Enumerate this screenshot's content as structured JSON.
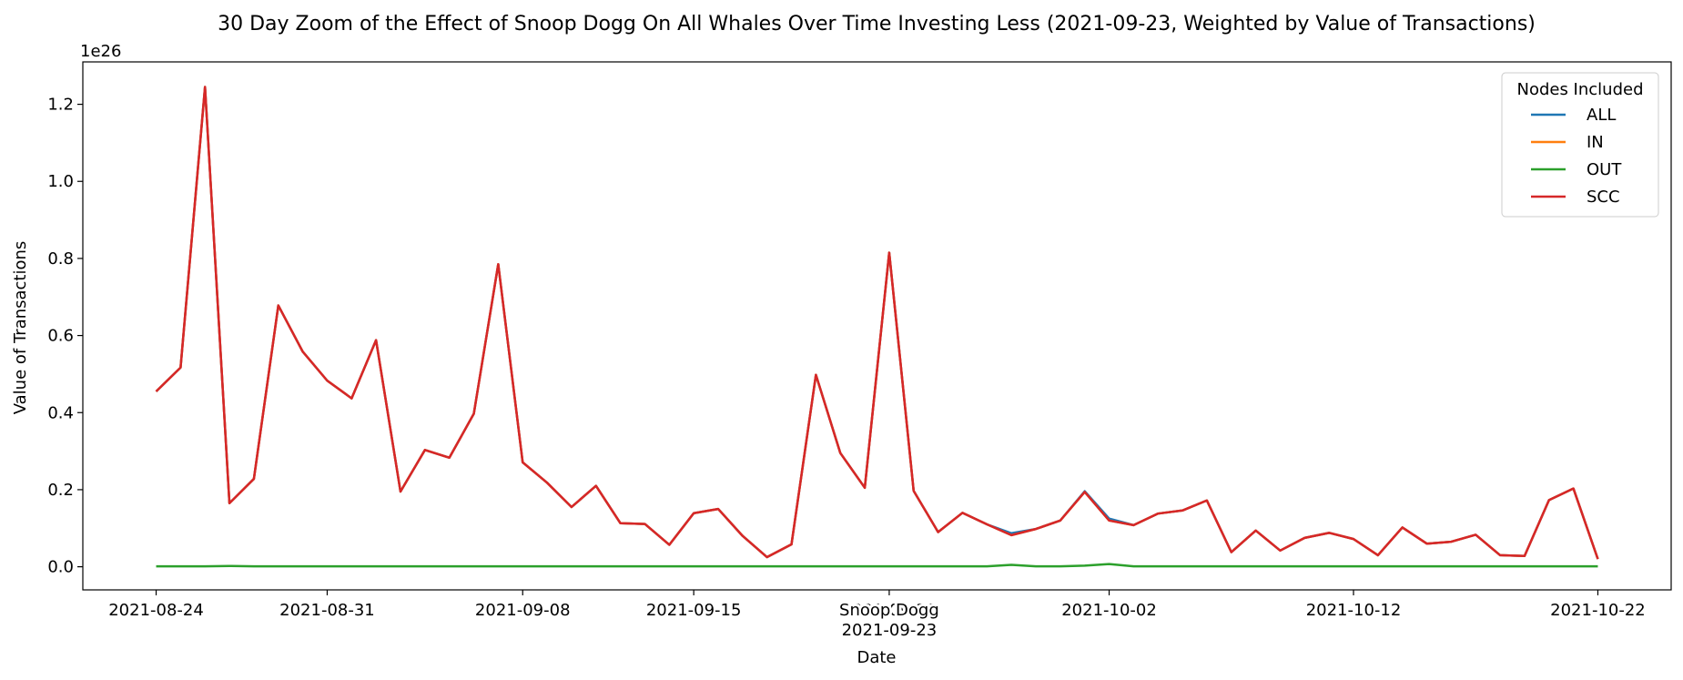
{
  "chart_data": {
    "type": "line",
    "title": "30 Day Zoom of the Effect of Snoop Dogg On All Whales Over Time Investing Less (2021-09-23, Weighted by Value of Transactions)",
    "xlabel": "Date",
    "ylabel": "Value of Transactions",
    "y_offset_text": "1e26",
    "y_scale_factor": 1e+26,
    "ylim": [
      -0.06,
      1.31
    ],
    "y_ticks": [
      0.0,
      0.2,
      0.4,
      0.6,
      0.8,
      1.0,
      1.2
    ],
    "y_tick_labels": [
      "0.0",
      "0.2",
      "0.4",
      "0.6",
      "0.8",
      "1.0",
      "1.2"
    ],
    "xlim": [
      "2021-08-21",
      "2021-10-25"
    ],
    "x_ticks": [
      "2021-08-24",
      "2021-08-31",
      "2021-09-08",
      "2021-09-15",
      "2021-09-23",
      "2021-10-02",
      "2021-10-12",
      "2021-10-22"
    ],
    "x_tick_labels": [
      "2021-08-24",
      "2021-08-31",
      "2021-09-08",
      "2021-09-15",
      "2021-09-23",
      "2021-10-02",
      "2021-10-12",
      "2021-10-22"
    ],
    "event_label": "Snoop Dogg",
    "event_date": "2021-09-23",
    "legend": {
      "title": "Nodes Included",
      "position": "upper-right"
    },
    "x": [
      "2021-08-24",
      "2021-08-25",
      "2021-08-26",
      "2021-08-27",
      "2021-08-28",
      "2021-08-29",
      "2021-08-30",
      "2021-08-31",
      "2021-09-01",
      "2021-09-02",
      "2021-09-03",
      "2021-09-04",
      "2021-09-05",
      "2021-09-06",
      "2021-09-07",
      "2021-09-08",
      "2021-09-09",
      "2021-09-10",
      "2021-09-11",
      "2021-09-12",
      "2021-09-13",
      "2021-09-14",
      "2021-09-15",
      "2021-09-16",
      "2021-09-17",
      "2021-09-18",
      "2021-09-19",
      "2021-09-20",
      "2021-09-21",
      "2021-09-22",
      "2021-09-23",
      "2021-09-24",
      "2021-09-25",
      "2021-09-26",
      "2021-09-27",
      "2021-09-28",
      "2021-09-29",
      "2021-09-30",
      "2021-10-01",
      "2021-10-02",
      "2021-10-03",
      "2021-10-04",
      "2021-10-05",
      "2021-10-06",
      "2021-10-07",
      "2021-10-08",
      "2021-10-09",
      "2021-10-10",
      "2021-10-11",
      "2021-10-12",
      "2021-10-13",
      "2021-10-14",
      "2021-10-15",
      "2021-10-16",
      "2021-10-17",
      "2021-10-18",
      "2021-10-19",
      "2021-10-20",
      "2021-10-21",
      "2021-10-22"
    ],
    "series": [
      {
        "name": "ALL",
        "color": "#1f77b4",
        "values": [
          0.455,
          0.517,
          1.245,
          0.165,
          0.228,
          0.678,
          0.558,
          0.483,
          0.437,
          0.588,
          0.195,
          0.303,
          0.283,
          0.397,
          0.785,
          0.271,
          0.218,
          0.155,
          0.21,
          0.113,
          0.111,
          0.057,
          0.139,
          0.15,
          0.08,
          0.025,
          0.058,
          0.498,
          0.295,
          0.205,
          0.815,
          0.197,
          0.09,
          0.14,
          0.11,
          0.087,
          0.098,
          0.12,
          0.196,
          0.125,
          0.108,
          0.138,
          0.146,
          0.172,
          0.038,
          0.094,
          0.042,
          0.075,
          0.088,
          0.072,
          0.03,
          0.102,
          0.06,
          0.065,
          0.083,
          0.03,
          0.028,
          0.173,
          0.203,
          0.02
        ]
      },
      {
        "name": "IN",
        "color": "#ff7f0e",
        "values": [
          0.455,
          0.517,
          1.245,
          0.165,
          0.228,
          0.678,
          0.558,
          0.483,
          0.437,
          0.588,
          0.195,
          0.303,
          0.283,
          0.397,
          0.785,
          0.271,
          0.218,
          0.155,
          0.21,
          0.113,
          0.111,
          0.057,
          0.139,
          0.15,
          0.08,
          0.025,
          0.058,
          0.498,
          0.295,
          0.205,
          0.815,
          0.197,
          0.09,
          0.14,
          0.11,
          0.082,
          0.098,
          0.12,
          0.194,
          0.12,
          0.108,
          0.138,
          0.146,
          0.172,
          0.038,
          0.094,
          0.042,
          0.075,
          0.088,
          0.072,
          0.03,
          0.102,
          0.06,
          0.065,
          0.083,
          0.03,
          0.028,
          0.173,
          0.203,
          0.02
        ]
      },
      {
        "name": "OUT",
        "color": "#2ca02c",
        "values": [
          0.001,
          0.001,
          0.001,
          0.002,
          0.001,
          0.001,
          0.001,
          0.001,
          0.001,
          0.001,
          0.001,
          0.001,
          0.001,
          0.001,
          0.001,
          0.001,
          0.001,
          0.001,
          0.001,
          0.001,
          0.001,
          0.001,
          0.001,
          0.001,
          0.001,
          0.001,
          0.001,
          0.001,
          0.001,
          0.001,
          0.001,
          0.001,
          0.001,
          0.001,
          0.001,
          0.005,
          0.001,
          0.001,
          0.003,
          0.007,
          0.001,
          0.001,
          0.001,
          0.001,
          0.001,
          0.001,
          0.001,
          0.001,
          0.001,
          0.001,
          0.001,
          0.001,
          0.001,
          0.001,
          0.001,
          0.001,
          0.001,
          0.001,
          0.001,
          0.001
        ]
      },
      {
        "name": "SCC",
        "color": "#d62728",
        "values": [
          0.455,
          0.517,
          1.245,
          0.165,
          0.228,
          0.678,
          0.558,
          0.483,
          0.437,
          0.588,
          0.195,
          0.303,
          0.283,
          0.397,
          0.785,
          0.271,
          0.218,
          0.155,
          0.21,
          0.113,
          0.111,
          0.057,
          0.139,
          0.15,
          0.08,
          0.025,
          0.058,
          0.498,
          0.295,
          0.205,
          0.815,
          0.197,
          0.09,
          0.14,
          0.11,
          0.082,
          0.098,
          0.12,
          0.194,
          0.12,
          0.108,
          0.138,
          0.146,
          0.172,
          0.038,
          0.094,
          0.042,
          0.075,
          0.088,
          0.072,
          0.03,
          0.102,
          0.06,
          0.065,
          0.083,
          0.03,
          0.028,
          0.173,
          0.203,
          0.02
        ]
      }
    ]
  }
}
